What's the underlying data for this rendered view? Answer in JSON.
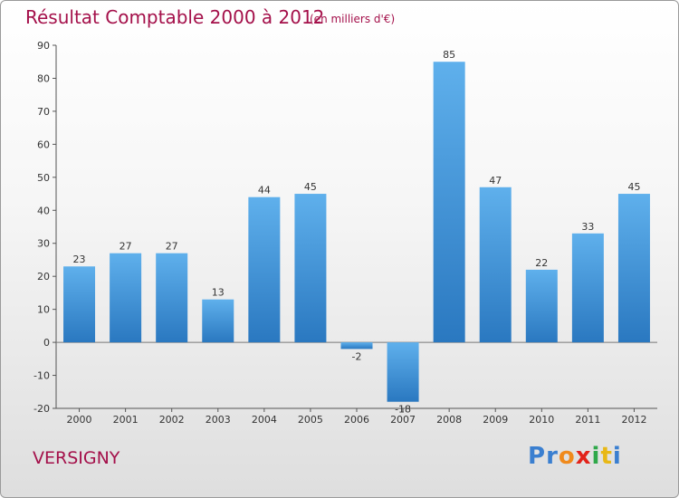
{
  "chart_data": {
    "type": "bar",
    "title": "Résultat Comptable 2000 à 2012",
    "subtitle": "(en milliers d'€)",
    "categories": [
      "2000",
      "2001",
      "2002",
      "2003",
      "2004",
      "2005",
      "2006",
      "2007",
      "2008",
      "2009",
      "2010",
      "2011",
      "2012"
    ],
    "values": [
      23,
      27,
      27,
      13,
      44,
      45,
      -2,
      -18,
      85,
      47,
      22,
      33,
      45
    ],
    "value_labels": [
      "23",
      "27",
      "27",
      "13",
      "44",
      "45",
      "-2",
      "-18",
      "85",
      "47",
      "22",
      "33",
      "45"
    ],
    "yticks": [
      90,
      80,
      70,
      60,
      50,
      40,
      30,
      20,
      10,
      0,
      -10,
      -20
    ],
    "ylim": [
      -20,
      90
    ],
    "xlabel": "",
    "ylabel": "",
    "bar_color": "#3d8fd6",
    "grid": false
  },
  "place_name": "VERSIGNY",
  "logo": {
    "letters": [
      "P",
      "r",
      "o",
      "x",
      "i",
      "t",
      "i"
    ],
    "colors": [
      "#3a7fd0",
      "#3a7fd0",
      "#f08a1c",
      "#e2231a",
      "#2fa84a",
      "#e8b816",
      "#3a7fd0"
    ]
  },
  "colors": {
    "title": "#a4104a",
    "axis": "#333333"
  }
}
